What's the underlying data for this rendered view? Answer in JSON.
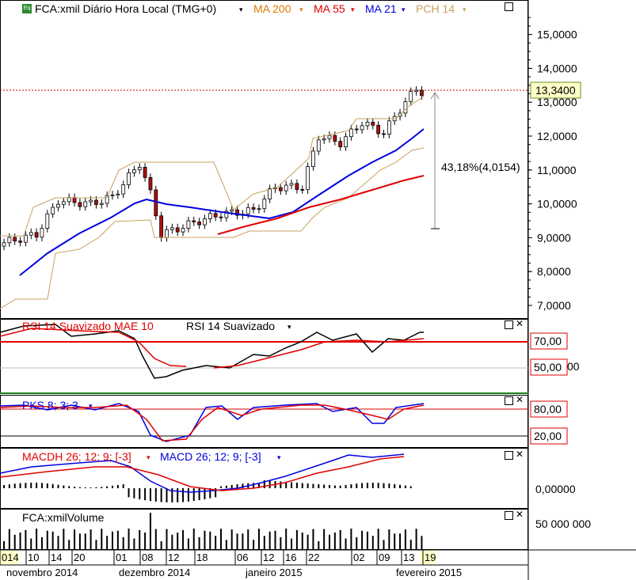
{
  "main_legend": {
    "symbol": "FCA:xmil Diário Hora Local (TMG+0)",
    "badge": "Eq",
    "ma200": "MA 200",
    "ma55": "MA 55",
    "ma21": "MA 21",
    "pch": "PCH 14"
  },
  "colors": {
    "ma200": "#e07a00",
    "ma55": "#e00000",
    "ma21": "#0000e0",
    "pch": "#c8a060",
    "rsi": "#000000",
    "rsi_smooth": "#e00000"
  },
  "price_axis": [
    "15,0000",
    "14,0000",
    "13,0000",
    "12,0000",
    "11,0000",
    "10,0000",
    "9,0000",
    "8,0000",
    "7,0000"
  ],
  "last_price": "13,3400",
  "measure_label": "43,18%(4,0154)",
  "rsi_panel": {
    "legend_red": "RSI 14 Suavizado MAE 10",
    "legend_black": "RSI 14 Suavizado",
    "level_high": "70,00",
    "level_low": "50,00",
    "axis_partial": "00"
  },
  "pks_panel": {
    "legend": "PKS 8; 3; 3",
    "level_high": "80,00",
    "level_low": "20,00"
  },
  "macd_panel": {
    "legend_red": "MACDH 26; 12; 9; [-3]",
    "legend_blue": "MACD 26; 12; 9; [-3]",
    "axis": "0,00000"
  },
  "volume_panel": {
    "legend": "FCA:xmilVolume",
    "axis": "50 000 000"
  },
  "date_axis": {
    "days": [
      "014",
      "10",
      "14",
      "20",
      "01",
      "08",
      "12",
      "18",
      "06",
      "12",
      "16",
      "22",
      "02",
      "09",
      "13",
      "19"
    ],
    "months": [
      "novembro 2014",
      "dezembro 2014",
      "janeiro 2015",
      "fevereiro 2015"
    ]
  }
}
